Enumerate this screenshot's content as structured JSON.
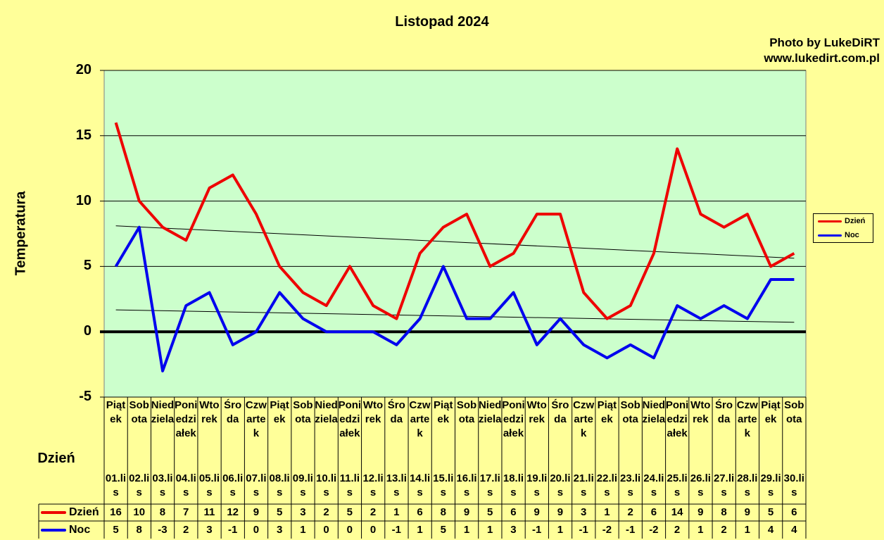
{
  "chart_data": {
    "type": "line",
    "title": "Listopad 2024",
    "xlabel": "Dzień",
    "ylabel": "Temperatura",
    "ylim": [
      -5,
      20
    ],
    "yticks": [
      20,
      15,
      10,
      5,
      0,
      -5
    ],
    "grid": true,
    "legend_position": "right",
    "categories": [
      "01.lis",
      "02.lis",
      "03.lis",
      "04.lis",
      "05.lis",
      "06.lis",
      "07.lis",
      "08.lis",
      "09.lis",
      "10.lis",
      "11.lis",
      "12.lis",
      "13.lis",
      "14.lis",
      "15.lis",
      "16.lis",
      "17.lis",
      "18.lis",
      "19.lis",
      "20.lis",
      "21.lis",
      "22.lis",
      "23.lis",
      "24.lis",
      "25.lis",
      "26.lis",
      "27.lis",
      "28.lis",
      "29.lis",
      "30.lis"
    ],
    "weekdays": [
      "Piątek",
      "Sobota",
      "Niedziela",
      "Poniedziałek",
      "Wtorek",
      "Środa",
      "Czwartek",
      "Piątek",
      "Sobota",
      "Niedziela",
      "Poniedziałek",
      "Wtorek",
      "Środa",
      "Czwartek",
      "Piątek",
      "Sobota",
      "Niedziela",
      "Poniedziałek",
      "Wtorek",
      "Środa",
      "Czwartek",
      "Piątek",
      "Sobota",
      "Niedziela",
      "Poniedziałek",
      "Wtorek",
      "Środa",
      "Czwartek",
      "Piątek",
      "Sobota"
    ],
    "series": [
      {
        "name": "Dzień",
        "color": "#ee0000",
        "values": [
          16,
          10,
          8,
          7,
          11,
          12,
          9,
          5,
          3,
          2,
          5,
          2,
          1,
          6,
          8,
          9,
          5,
          6,
          9,
          9,
          3,
          1,
          2,
          6,
          14,
          9,
          8,
          9,
          5,
          6
        ]
      },
      {
        "name": "Noc",
        "color": "#0000ee",
        "values": [
          5,
          8,
          -3,
          2,
          3,
          -1,
          0,
          3,
          1,
          0,
          0,
          0,
          -1,
          1,
          5,
          1,
          1,
          3,
          -1,
          1,
          -1,
          -2,
          -1,
          -2,
          2,
          1,
          2,
          1,
          4,
          4
        ]
      }
    ],
    "trendlines": "linear"
  },
  "watermark": {
    "line1": "Photo by LukeDiRT",
    "line2": "www.lukedirt.com.pl"
  }
}
